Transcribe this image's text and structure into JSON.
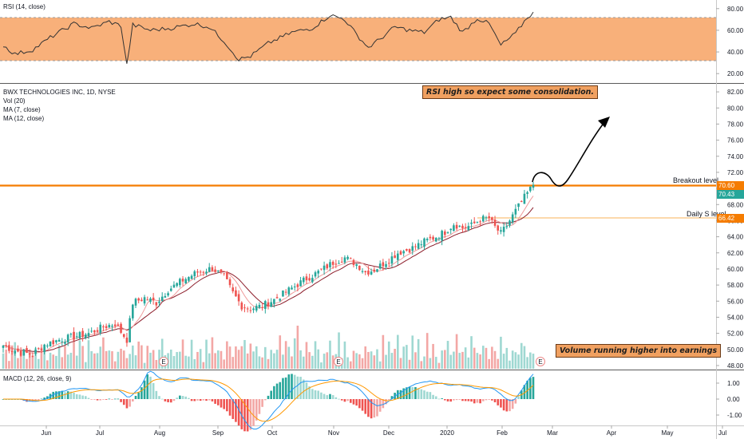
{
  "panels": {
    "rsi_label": "RSI (14, close)",
    "main_title": "BWX TECHNOLOGIES INC, 1D, NYSE",
    "indicator_vol": "Vol (20)",
    "indicator_ma7": "MA (7, close)",
    "indicator_ma12": "MA (12, close)",
    "macd_label": "MACD (12, 26, close, 9)"
  },
  "annotations": {
    "rsi_note": "RSI high so expect some consolidation.",
    "volume_note": "Volume running higher into earnings",
    "breakout_label": "Breakout level",
    "support_label": "Daily S level"
  },
  "price_tags": {
    "breakout": "70.60",
    "last": "70.43",
    "support": "66.42"
  },
  "earnings_marker": "E",
  "colors": {
    "up": "#26a69a",
    "down": "#ef5350",
    "breakout_line": "#f57c00",
    "support_line": "#f9c27a",
    "rsi_band": "#f8b07a",
    "ma7": "#ef9a9a",
    "ma12": "#8d1e2b",
    "macd": "#2196f3",
    "signal": "#ff9800"
  },
  "chart_data": {
    "type": "candlestick",
    "x_ticks": [
      "Jun",
      "Jul",
      "Aug",
      "Sep",
      "Oct",
      "Nov",
      "Dec",
      "2020",
      "Feb",
      "Mar",
      "Apr",
      "May",
      "Jul"
    ],
    "price_axis": {
      "ticks": [
        "82.00",
        "80.00",
        "78.00",
        "76.00",
        "74.00",
        "72.00",
        "70.00",
        "68.00",
        "66.00",
        "64.00",
        "62.00",
        "60.00",
        "58.00",
        "56.00",
        "54.00",
        "52.00",
        "50.00",
        "48.00"
      ],
      "ylim": [
        47.5,
        83
      ]
    },
    "rsi_axis": {
      "ticks": [
        "80.00",
        "60.00",
        "40.00",
        "20.00"
      ],
      "band": [
        30,
        70
      ]
    },
    "macd_axis": {
      "ticks": [
        "1.00",
        "0.00",
        "-1.00"
      ]
    },
    "levels": {
      "breakout": 70.6,
      "support": 66.42
    },
    "close_anchors": [
      [
        0,
        50.5
      ],
      [
        6,
        50.0
      ],
      [
        12,
        49.6
      ],
      [
        20,
        49.4
      ],
      [
        28,
        50.6
      ],
      [
        38,
        51.2
      ],
      [
        48,
        51.6
      ],
      [
        58,
        52.0
      ],
      [
        68,
        52.8
      ],
      [
        76,
        53.2
      ],
      [
        84,
        51.2
      ],
      [
        88,
        55.8
      ],
      [
        96,
        56.4
      ],
      [
        104,
        55.8
      ],
      [
        112,
        57.4
      ],
      [
        122,
        58.6
      ],
      [
        132,
        59.6
      ],
      [
        142,
        60.1
      ],
      [
        150,
        59.0
      ],
      [
        156,
        57.0
      ],
      [
        162,
        55.4
      ],
      [
        168,
        55.1
      ],
      [
        176,
        55.4
      ],
      [
        186,
        56.4
      ],
      [
        196,
        57.6
      ],
      [
        206,
        58.8
      ],
      [
        214,
        59.6
      ],
      [
        224,
        60.8
      ],
      [
        232,
        61.4
      ],
      [
        240,
        60.6
      ],
      [
        246,
        59.6
      ],
      [
        252,
        59.9
      ],
      [
        260,
        60.9
      ],
      [
        268,
        62.0
      ],
      [
        278,
        62.6
      ],
      [
        286,
        63.4
      ],
      [
        294,
        64.0
      ],
      [
        300,
        64.6
      ],
      [
        306,
        65.6
      ],
      [
        312,
        65.1
      ],
      [
        318,
        65.4
      ],
      [
        324,
        66.2
      ],
      [
        330,
        66.3
      ],
      [
        334,
        65.2
      ],
      [
        338,
        64.4
      ],
      [
        342,
        65.4
      ],
      [
        348,
        67.2
      ],
      [
        354,
        68.9
      ],
      [
        360,
        70.43
      ]
    ],
    "rsi_anchors": [
      [
        0,
        46
      ],
      [
        8,
        38
      ],
      [
        20,
        42
      ],
      [
        34,
        55
      ],
      [
        48,
        66
      ],
      [
        60,
        62
      ],
      [
        72,
        68
      ],
      [
        80,
        64
      ],
      [
        84,
        28
      ],
      [
        88,
        65
      ],
      [
        100,
        60
      ],
      [
        114,
        62
      ],
      [
        130,
        66
      ],
      [
        140,
        63
      ],
      [
        150,
        50
      ],
      [
        160,
        33
      ],
      [
        168,
        36
      ],
      [
        180,
        48
      ],
      [
        196,
        58
      ],
      [
        210,
        62
      ],
      [
        222,
        74
      ],
      [
        232,
        70
      ],
      [
        240,
        56
      ],
      [
        248,
        44
      ],
      [
        256,
        52
      ],
      [
        266,
        63
      ],
      [
        276,
        60
      ],
      [
        286,
        58
      ],
      [
        296,
        70
      ],
      [
        304,
        72
      ],
      [
        312,
        58
      ],
      [
        322,
        71
      ],
      [
        330,
        66
      ],
      [
        338,
        46
      ],
      [
        348,
        57
      ],
      [
        356,
        72
      ],
      [
        360,
        76
      ]
    ],
    "volume_pattern": [
      36,
      54,
      28,
      45,
      62,
      31,
      48,
      40,
      22,
      57
    ]
  }
}
